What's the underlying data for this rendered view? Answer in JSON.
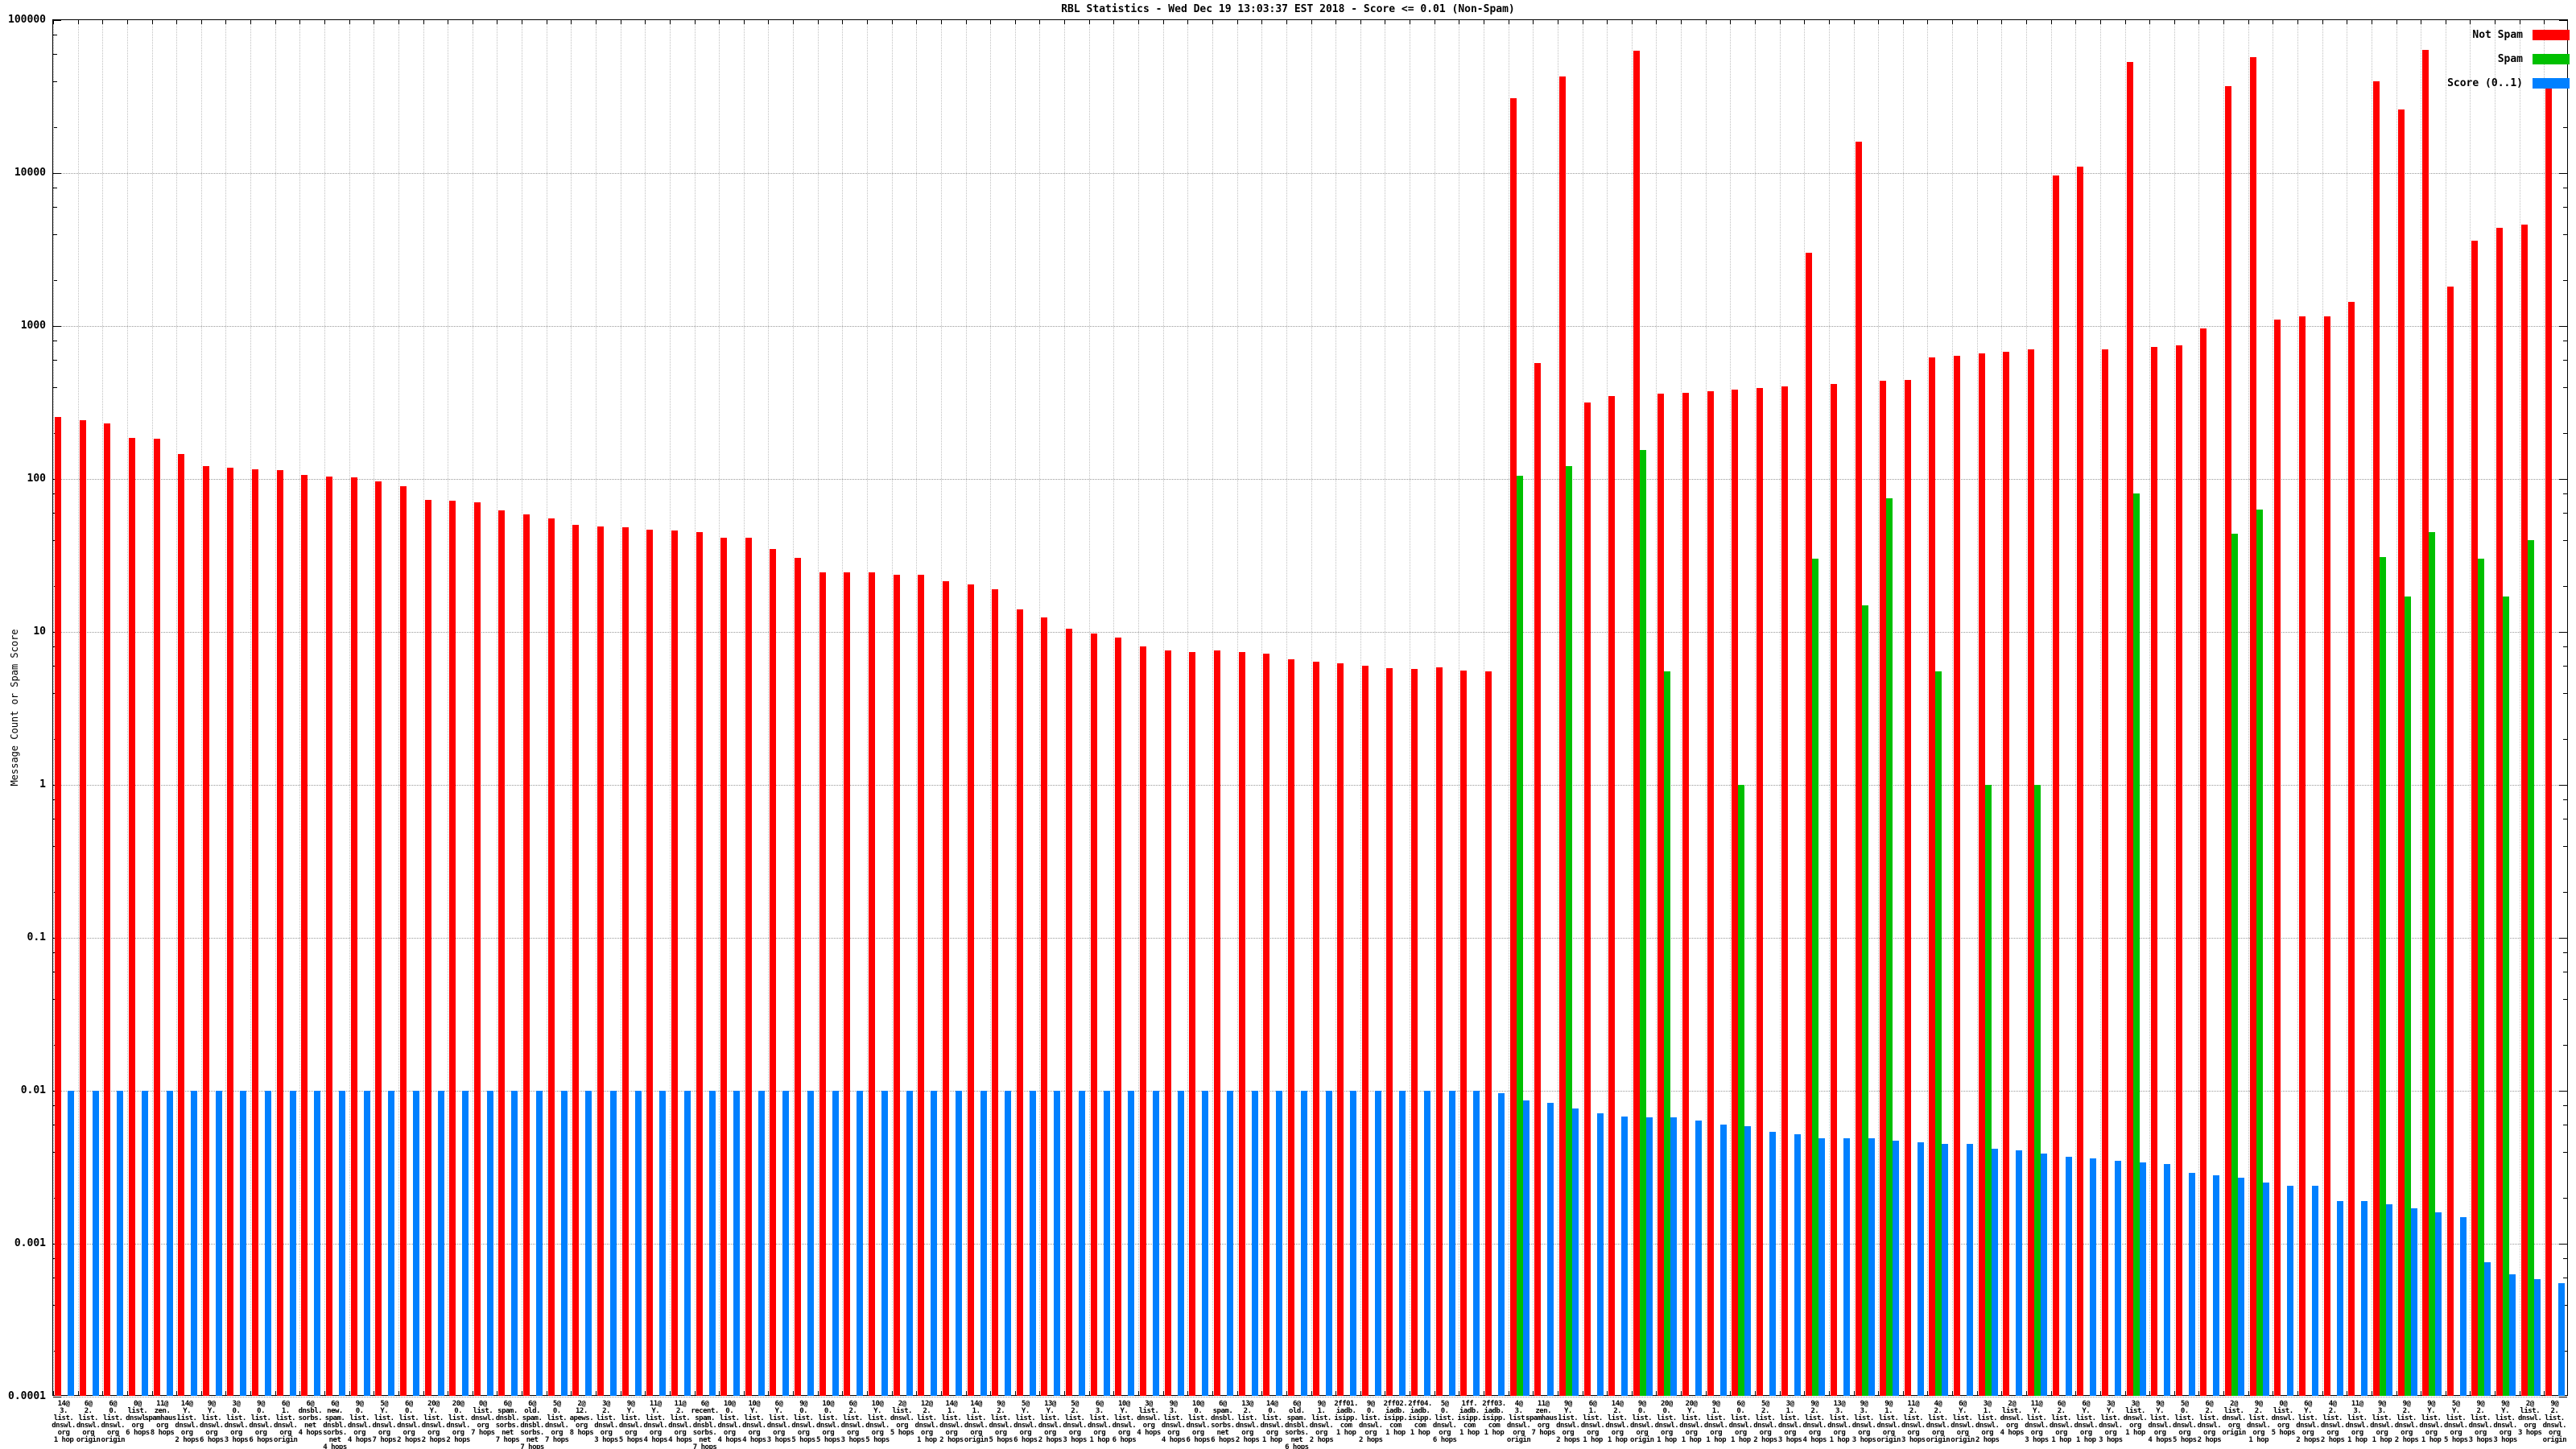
{
  "title": "RBL Statistics - Wed Dec 19 13:03:37 EST 2018 - Score <= 0.01 (Non-Spam)",
  "y_axis": {
    "label": "Message Count or Spam Score",
    "ticks": [
      "100000",
      "10000",
      "1000",
      "100",
      "10",
      "1",
      "0.1",
      "0.01",
      "0.001",
      "0.0001"
    ]
  },
  "legend": [
    {
      "label": "Not Spam",
      "color": "#ff0000"
    },
    {
      "label": "Spam",
      "color": "#00c000"
    },
    {
      "label": "Score (0..1)",
      "color": "#0080ff"
    }
  ],
  "chart_data": {
    "type": "bar",
    "log_y": true,
    "ylim": [
      0.0001,
      100000
    ],
    "grid": true,
    "legend_position": "top-right",
    "categories": [
      [
        "14@",
        "3.",
        "list.",
        "dnswl.",
        "org",
        "1 hop"
      ],
      [
        "6@",
        "2.",
        "list.",
        "dnswl.",
        "org",
        "origin"
      ],
      [
        "6@",
        "0.",
        "list.",
        "dnswl.",
        "org",
        "origin"
      ],
      [
        "0@",
        "list.",
        "dnswl.",
        "org",
        "6 hops"
      ],
      [
        "11@",
        "zen.",
        "spamhaus.",
        "org",
        "8 hops"
      ],
      [
        "14@",
        "Y.",
        "list.",
        "dnswl.",
        "org",
        "2 hops"
      ],
      [
        "9@",
        "Y.",
        "list.",
        "dnswl.",
        "org",
        "6 hops"
      ],
      [
        "3@",
        "0.",
        "list.",
        "dnswl.",
        "org",
        "3 hops"
      ],
      [
        "9@",
        "0.",
        "list.",
        "dnswl.",
        "org",
        "6 hops"
      ],
      [
        "6@",
        "1.",
        "list.",
        "dnswl.",
        "org",
        "origin"
      ],
      [
        "6@",
        "dnsbl.",
        "sorbs.",
        "net",
        "4 hops"
      ],
      [
        "6@",
        "new.",
        "spam.",
        "dnsbl.",
        "sorbs.",
        "net",
        "4 hops"
      ],
      [
        "9@",
        "0.",
        "list.",
        "dnswl.",
        "org",
        "4 hops"
      ],
      [
        "5@",
        "Y.",
        "list.",
        "dnswl.",
        "org",
        "7 hops"
      ],
      [
        "6@",
        "0.",
        "list.",
        "dnswl.",
        "org",
        "2 hops"
      ],
      [
        "20@",
        "Y.",
        "list.",
        "dnswl.",
        "org",
        "2 hops"
      ],
      [
        "20@",
        "0.",
        "list.",
        "dnswl.",
        "org",
        "2 hops"
      ],
      [
        "0@",
        "list.",
        "dnswl.",
        "org",
        "7 hops"
      ],
      [
        "6@",
        "spam.",
        "dnsbl.",
        "sorbs.",
        "net",
        "7 hops"
      ],
      [
        "6@",
        "old.",
        "spam.",
        "dnsbl.",
        "sorbs.",
        "net",
        "7 hops"
      ],
      [
        "5@",
        "0.",
        "list.",
        "dnswl.",
        "org",
        "7 hops"
      ],
      [
        "2@",
        "12.",
        "apews.",
        "org",
        "8 hops"
      ],
      [
        "3@",
        "2.",
        "list.",
        "dnswl.",
        "org",
        "3 hops"
      ],
      [
        "9@",
        "Y.",
        "list.",
        "dnswl.",
        "org",
        "5 hops"
      ],
      [
        "11@",
        "Y.",
        "list.",
        "dnswl.",
        "org",
        "4 hops"
      ],
      [
        "11@",
        "2.",
        "list.",
        "dnswl.",
        "org",
        "4 hops"
      ],
      [
        "6@",
        "recent.",
        "spam.",
        "dnsbl.",
        "sorbs.",
        "net",
        "7 hops"
      ],
      [
        "10@",
        "0.",
        "list.",
        "dnswl.",
        "org",
        "4 hops"
      ],
      [
        "10@",
        "Y.",
        "list.",
        "dnswl.",
        "org",
        "4 hops"
      ],
      [
        "6@",
        "Y.",
        "list.",
        "dnswl.",
        "org",
        "3 hops"
      ],
      [
        "9@",
        "0.",
        "list.",
        "dnswl.",
        "org",
        "5 hops"
      ],
      [
        "10@",
        "0.",
        "list.",
        "dnswl.",
        "org",
        "5 hops"
      ],
      [
        "6@",
        "2.",
        "list.",
        "dnswl.",
        "org",
        "3 hops"
      ],
      [
        "10@",
        "Y.",
        "list.",
        "dnswl.",
        "org",
        "5 hops"
      ],
      [
        "2@",
        "list.",
        "dnswl.",
        "org",
        "5 hops"
      ],
      [
        "12@",
        "2.",
        "list.",
        "dnswl.",
        "org",
        "1 hop"
      ],
      [
        "14@",
        "1.",
        "list.",
        "dnswl.",
        "org",
        "2 hops"
      ],
      [
        "14@",
        "1.",
        "list.",
        "dnswl.",
        "org",
        "origin"
      ],
      [
        "9@",
        "2.",
        "list.",
        "dnswl.",
        "org",
        "5 hops"
      ],
      [
        "5@",
        "Y.",
        "list.",
        "dnswl.",
        "org",
        "6 hops"
      ],
      [
        "13@",
        "Y.",
        "list.",
        "dnswl.",
        "org",
        "2 hops"
      ],
      [
        "5@",
        "2.",
        "list.",
        "dnswl.",
        "org",
        "3 hops"
      ],
      [
        "6@",
        "3.",
        "list.",
        "dnswl.",
        "org",
        "1 hop"
      ],
      [
        "10@",
        "Y.",
        "list.",
        "dnswl.",
        "org",
        "6 hops"
      ],
      [
        "3@",
        "list.",
        "dnswl.",
        "org",
        "4 hops"
      ],
      [
        "9@",
        "3.",
        "list.",
        "dnswl.",
        "org",
        "4 hops"
      ],
      [
        "10@",
        "0.",
        "list.",
        "dnswl.",
        "org",
        "6 hops"
      ],
      [
        "6@",
        "spam.",
        "dnsbl.",
        "sorbs.",
        "net",
        "6 hops"
      ],
      [
        "13@",
        "2.",
        "list.",
        "dnswl.",
        "org",
        "2 hops"
      ],
      [
        "14@",
        "0.",
        "list.",
        "dnswl.",
        "org",
        "1 hop"
      ],
      [
        "6@",
        "old.",
        "spam.",
        "dnsbl.",
        "sorbs.",
        "net",
        "6 hops"
      ],
      [
        "9@",
        "1.",
        "list.",
        "dnswl.",
        "org",
        "2 hops"
      ],
      [
        "2ff01.",
        "iadb.",
        "isipp.",
        "com",
        "1 hop"
      ],
      [
        "9@",
        "0.",
        "list.",
        "dnswl.",
        "org",
        "2 hops"
      ],
      [
        "2ff02.",
        "iadb.",
        "isipp.",
        "com",
        "1 hop"
      ],
      [
        "2ff04.",
        "iadb.",
        "isipp.",
        "com",
        "1 hop"
      ],
      [
        "5@",
        "0.",
        "list.",
        "dnswl.",
        "org",
        "6 hops"
      ],
      [
        "1ff.",
        "iadb.",
        "isipp.",
        "com",
        "1 hop"
      ],
      [
        "2ff03.",
        "iadb.",
        "isipp.",
        "com",
        "1 hop"
      ],
      [
        "4@",
        "3.",
        "list.",
        "dnswl.",
        "org",
        "origin"
      ],
      [
        "11@",
        "zen.",
        "spamhaus.",
        "org",
        "7 hops"
      ],
      [
        "9@",
        "Y.",
        "list.",
        "dnswl.",
        "org",
        "2 hops"
      ],
      [
        "6@",
        "1.",
        "list.",
        "dnswl.",
        "org",
        "1 hop"
      ],
      [
        "14@",
        "2.",
        "list.",
        "dnswl.",
        "org",
        "1 hop"
      ],
      [
        "9@",
        "0.",
        "list.",
        "dnswl.",
        "org",
        "origin"
      ],
      [
        "20@",
        "0.",
        "list.",
        "dnswl.",
        "org",
        "1 hop"
      ],
      [
        "20@",
        "Y.",
        "list.",
        "dnswl.",
        "org",
        "1 hop"
      ],
      [
        "9@",
        "1.",
        "list.",
        "dnswl.",
        "org",
        "1 hop"
      ],
      [
        "6@",
        "0.",
        "list.",
        "dnswl.",
        "org",
        "1 hop"
      ],
      [
        "5@",
        "2.",
        "list.",
        "dnswl.",
        "org",
        "2 hops"
      ],
      [
        "3@",
        "1.",
        "list.",
        "dnswl.",
        "org",
        "3 hops"
      ],
      [
        "9@",
        "2.",
        "list.",
        "dnswl.",
        "org",
        "4 hops"
      ],
      [
        "13@",
        "3.",
        "list.",
        "dnswl.",
        "org",
        "1 hop"
      ],
      [
        "9@",
        "3.",
        "list.",
        "dnswl.",
        "org",
        "3 hops"
      ],
      [
        "9@",
        "1.",
        "list.",
        "dnswl.",
        "org",
        "origin"
      ],
      [
        "11@",
        "2.",
        "list.",
        "dnswl.",
        "org",
        "3 hops"
      ],
      [
        "4@",
        "2.",
        "list.",
        "dnswl.",
        "org",
        "origin"
      ],
      [
        "6@",
        "Y.",
        "list.",
        "dnswl.",
        "org",
        "origin"
      ],
      [
        "3@",
        "1.",
        "list.",
        "dnswl.",
        "org",
        "2 hops"
      ],
      [
        "2@",
        "list.",
        "dnswl.",
        "org",
        "4 hops"
      ],
      [
        "11@",
        "Y.",
        "list.",
        "dnswl.",
        "org",
        "3 hops"
      ],
      [
        "6@",
        "2.",
        "list.",
        "dnswl.",
        "org",
        "1 hop"
      ],
      [
        "6@",
        "Y.",
        "list.",
        "dnswl.",
        "org",
        "1 hop"
      ],
      [
        "3@",
        "Y.",
        "list.",
        "dnswl.",
        "org",
        "3 hops"
      ],
      [
        "3@",
        "list.",
        "dnswl.",
        "org",
        "1 hop"
      ],
      [
        "9@",
        "Y.",
        "list.",
        "dnswl.",
        "org",
        "4 hops"
      ],
      [
        "5@",
        "0.",
        "list.",
        "dnswl.",
        "org",
        "5 hops"
      ],
      [
        "6@",
        "2.",
        "list.",
        "dnswl.",
        "org",
        "2 hops"
      ],
      [
        "2@",
        "list.",
        "dnswl.",
        "org",
        "origin"
      ],
      [
        "9@",
        "2.",
        "list.",
        "dnswl.",
        "org",
        "1 hop"
      ],
      [
        "0@",
        "list.",
        "dnswl.",
        "org",
        "5 hops"
      ],
      [
        "6@",
        "Y.",
        "list.",
        "dnswl.",
        "org",
        "2 hops"
      ],
      [
        "4@",
        "2.",
        "list.",
        "dnswl.",
        "org",
        "2 hops"
      ],
      [
        "11@",
        "3.",
        "list.",
        "dnswl.",
        "org",
        "1 hop"
      ],
      [
        "9@",
        "3.",
        "list.",
        "dnswl.",
        "org",
        "1 hop"
      ],
      [
        "9@",
        "2.",
        "list.",
        "dnswl.",
        "org",
        "2 hops"
      ],
      [
        "9@",
        "Y.",
        "list.",
        "dnswl.",
        "org",
        "1 hop"
      ],
      [
        "5@",
        "Y.",
        "list.",
        "dnswl.",
        "org",
        "5 hops"
      ],
      [
        "9@",
        "2.",
        "list.",
        "dnswl.",
        "org",
        "3 hops"
      ],
      [
        "9@",
        "Y.",
        "list.",
        "dnswl.",
        "org",
        "3 hops"
      ],
      [
        "2@",
        "list.",
        "dnswl.",
        "org",
        "3 hops"
      ],
      [
        "9@",
        "2.",
        "list.",
        "dnswl.",
        "org",
        "origin"
      ]
    ],
    "series": [
      {
        "name": "Not Spam",
        "color": "#ff0000",
        "values": [
          254,
          243,
          232,
          186,
          183,
          146,
          121,
          119,
          116,
          114,
          106,
          104,
          103,
          96,
          90,
          73,
          72,
          70,
          62,
          59,
          55,
          50,
          49,
          48.5,
          46.5,
          46,
          45,
          41.5,
          41.5,
          35,
          30.5,
          24.5,
          24.5,
          24.5,
          23.5,
          23.5,
          21.5,
          20.5,
          19,
          14,
          12.5,
          10.5,
          9.8,
          9.2,
          8.0,
          7.6,
          7.4,
          7.6,
          7.4,
          7.2,
          6.6,
          6.4,
          6.2,
          6.0,
          5.8,
          5.7,
          5.9,
          5.6,
          5.5,
          31000,
          575,
          43000,
          315,
          350,
          63000,
          360,
          365,
          375,
          385,
          395,
          405,
          3000,
          420,
          16000,
          440,
          445,
          620,
          640,
          660,
          680,
          700,
          9700,
          11000,
          700,
          53000,
          730,
          745,
          970,
          37000,
          57000,
          1100,
          1150,
          1160,
          1430,
          40000,
          26000,
          64000,
          1800,
          3600,
          4400,
          4600,
          38000
        ]
      },
      {
        "name": "Spam",
        "color": "#00c000",
        "values": [
          null,
          null,
          null,
          null,
          null,
          null,
          null,
          null,
          null,
          null,
          null,
          null,
          null,
          null,
          null,
          null,
          null,
          null,
          null,
          null,
          null,
          null,
          null,
          null,
          null,
          null,
          null,
          null,
          null,
          null,
          null,
          null,
          null,
          null,
          null,
          null,
          null,
          null,
          null,
          null,
          null,
          null,
          null,
          null,
          null,
          null,
          null,
          null,
          null,
          null,
          null,
          null,
          null,
          null,
          null,
          null,
          null,
          null,
          null,
          105,
          null,
          122,
          null,
          null,
          155,
          5.5,
          null,
          null,
          1.0,
          null,
          null,
          30,
          null,
          15,
          75,
          null,
          5.5,
          null,
          1.0,
          null,
          1.0,
          null,
          null,
          null,
          80,
          null,
          null,
          null,
          44,
          63,
          null,
          null,
          null,
          null,
          31,
          17,
          45,
          null,
          30,
          17,
          40,
          null
        ]
      },
      {
        "name": "Score (0..1)",
        "color": "#0080ff",
        "values": [
          0.01,
          0.01,
          0.01,
          0.01,
          0.01,
          0.01,
          0.01,
          0.01,
          0.01,
          0.01,
          0.01,
          0.01,
          0.01,
          0.01,
          0.01,
          0.01,
          0.01,
          0.01,
          0.01,
          0.01,
          0.01,
          0.01,
          0.01,
          0.01,
          0.01,
          0.01,
          0.01,
          0.01,
          0.01,
          0.01,
          0.01,
          0.01,
          0.01,
          0.01,
          0.01,
          0.01,
          0.01,
          0.01,
          0.01,
          0.01,
          0.01,
          0.01,
          0.01,
          0.01,
          0.01,
          0.01,
          0.01,
          0.01,
          0.01,
          0.01,
          0.01,
          0.01,
          0.01,
          0.01,
          0.01,
          0.01,
          0.01,
          0.01,
          0.0097,
          0.0086,
          0.0083,
          0.0077,
          0.0071,
          0.0068,
          0.0067,
          0.0067,
          0.0064,
          0.006,
          0.0059,
          0.0054,
          0.0052,
          0.0049,
          0.0049,
          0.0049,
          0.0047,
          0.0046,
          0.0045,
          0.0045,
          0.0042,
          0.0041,
          0.0039,
          0.0037,
          0.0036,
          0.0035,
          0.0034,
          0.0033,
          0.0029,
          0.0028,
          0.0027,
          0.0025,
          0.0024,
          0.0024,
          0.0019,
          0.0019,
          0.0018,
          0.0017,
          0.0016,
          0.0015,
          0.00076,
          0.00063,
          0.00059,
          0.00055
        ]
      }
    ]
  }
}
